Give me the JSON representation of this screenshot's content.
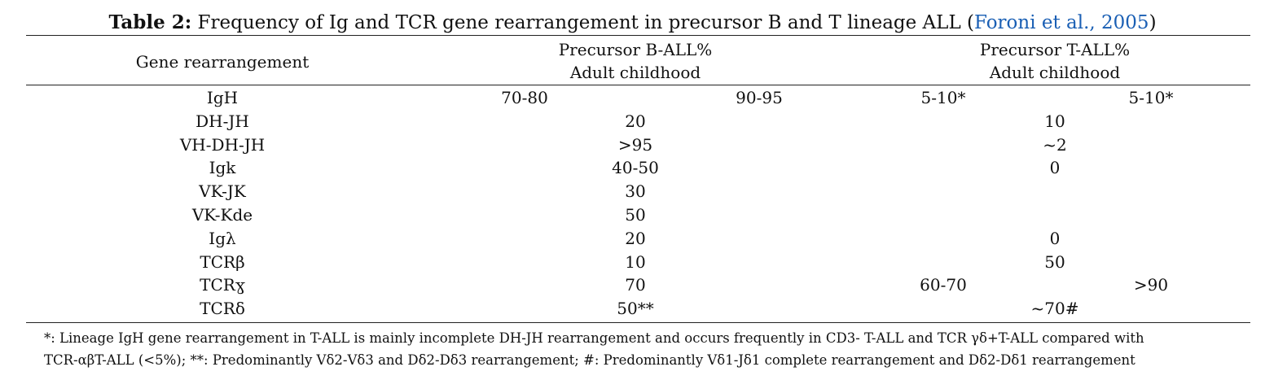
{
  "title": {
    "label": "Table 2:",
    "text": "Frequency of Ig and TCR gene rearrangement in precursor B and T lineage ALL (",
    "citation": "Foroni et al., 2005",
    "close": ")"
  },
  "table": {
    "headers": {
      "gene": "Gene rearrangement",
      "b": [
        "Precursor B-ALL%",
        "Adult childhood"
      ],
      "t": [
        "Precursor T-ALL%",
        "Adult childhood"
      ]
    },
    "rows": [
      {
        "gene": "IgH",
        "b": [
          "70-80",
          "90-95"
        ],
        "t": [
          "5-10*",
          "5-10*"
        ]
      },
      {
        "gene": "DH-JH",
        "b": [
          "20"
        ],
        "t": [
          "10"
        ]
      },
      {
        "gene": "VH-DH-JH",
        "b": [
          ">95"
        ],
        "t": [
          "~2"
        ]
      },
      {
        "gene": "Igk",
        "b": [
          "40-50"
        ],
        "t": [
          "0"
        ]
      },
      {
        "gene": "VK-JK",
        "b": [
          "30"
        ]
      },
      {
        "gene": "VK-Kde",
        "b": [
          "50"
        ]
      },
      {
        "gene": "Igλ",
        "b": [
          "20"
        ],
        "t": [
          "0"
        ]
      },
      {
        "gene": "TCRβ",
        "b": [
          "10"
        ],
        "t": [
          "50"
        ]
      },
      {
        "gene": "TCRɣ",
        "b": [
          "70"
        ],
        "t": [
          "60-70",
          ">90"
        ]
      },
      {
        "gene": "TCRδ",
        "b": [
          "50**"
        ],
        "t": [
          "~70#"
        ]
      }
    ]
  },
  "footnote": [
    "*: Lineage IgH gene rearrangement in T-ALL is mainly incomplete DH-JH rearrangement and occurs frequently in CD3- T-ALL and TCR γδ+T-ALL compared with",
    "TCR-αβT-ALL (<5%); **: Predominantly Vδ2-Vδ3 and Dδ2-Dδ3 rearrangement; #: Predominantly Vδ1-Jδ1 complete rearrangement and Dδ2-Dδ1 rearrangement"
  ]
}
